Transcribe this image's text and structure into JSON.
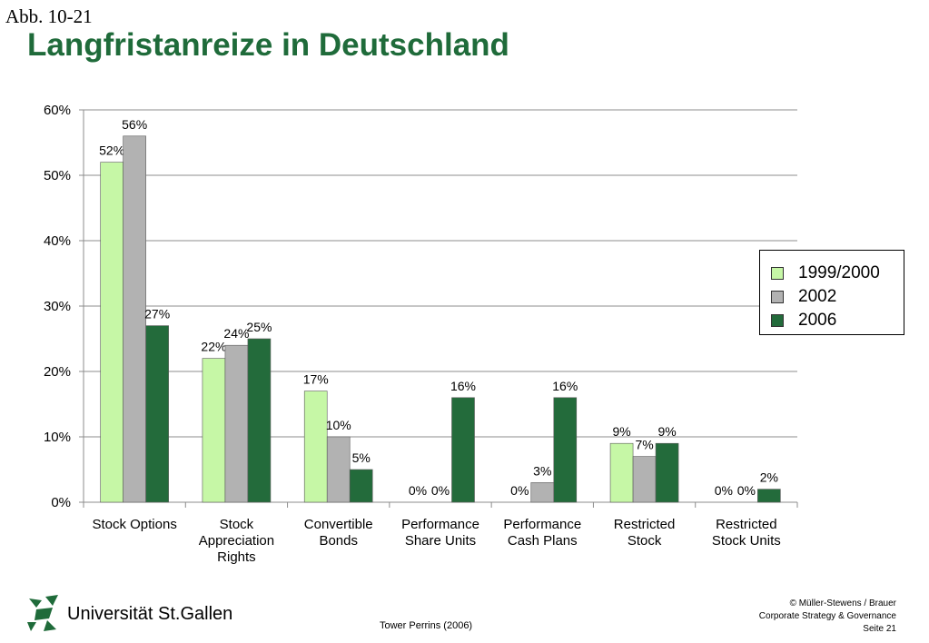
{
  "header": {
    "figure_label": "Abb. 10-21",
    "title": "Langfristanreize in Deutschland"
  },
  "chart_data": {
    "type": "bar",
    "categories": [
      [
        "Stock Options"
      ],
      [
        "Stock",
        "Appreciation",
        "Rights"
      ],
      [
        "Convertible",
        "Bonds"
      ],
      [
        "Performance",
        "Share Units"
      ],
      [
        "Performance",
        "Cash Plans"
      ],
      [
        "Restricted",
        "Stock"
      ],
      [
        "Restricted",
        "Stock Units"
      ]
    ],
    "series": [
      {
        "name": "1999/2000",
        "color": "#c6f7a6",
        "values": [
          52,
          22,
          17,
          0,
          0,
          9,
          0
        ],
        "labels": [
          "52%",
          "22%",
          "17%",
          "0%",
          "0%",
          "9%",
          "0%"
        ]
      },
      {
        "name": "2002",
        "color": "#b2b2b2",
        "values": [
          56,
          24,
          10,
          0,
          3,
          7,
          0
        ],
        "labels": [
          "56%",
          "24%",
          "10%",
          "0%",
          "3%",
          "7%",
          "0%"
        ]
      },
      {
        "name": "2006",
        "color": "#236b3b",
        "values": [
          27,
          25,
          5,
          16,
          16,
          9,
          2
        ],
        "labels": [
          "27%",
          "25%",
          "5%",
          "16%",
          "16%",
          "9%",
          "2%"
        ]
      }
    ],
    "y_ticks": [
      "0%",
      "10%",
      "20%",
      "30%",
      "40%",
      "50%",
      "60%"
    ],
    "ylim": [
      0,
      60
    ],
    "grid": true,
    "legend_position": "right"
  },
  "footer": {
    "logo_text": "Universität St.Gallen",
    "source": "Tower Perrins (2006)",
    "right_lines": [
      "© Müller-Stewens / Brauer",
      "Corporate Strategy & Governance",
      "Seite 21"
    ]
  },
  "colors": {
    "title": "#1f6b3a",
    "grid": "#8c8c8c",
    "logo": "#1f6b3a"
  }
}
